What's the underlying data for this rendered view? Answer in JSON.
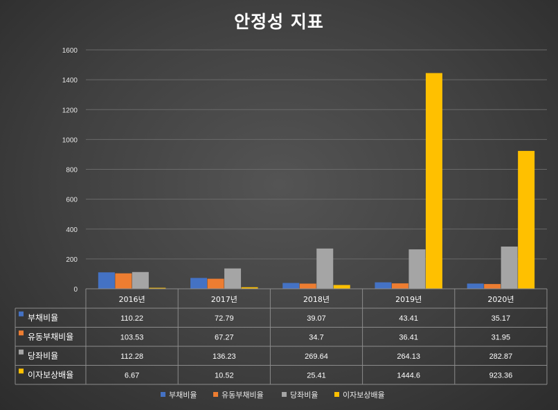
{
  "chart_data": {
    "type": "bar",
    "title": "안정성 지표",
    "categories": [
      "2016년",
      "2017년",
      "2018년",
      "2019년",
      "2020년"
    ],
    "series": [
      {
        "name": "부채비율",
        "color": "#4472C4",
        "values": [
          110.22,
          72.79,
          39.07,
          43.41,
          35.17
        ],
        "display": [
          "110.22",
          "72.79",
          "39.07",
          "43.41",
          "35.17"
        ]
      },
      {
        "name": "유동부채비율",
        "color": "#ED7D31",
        "values": [
          103.53,
          67.27,
          34.7,
          36.41,
          31.95
        ],
        "display": [
          "103.53",
          "67.27",
          "34.7",
          "36.41",
          "31.95"
        ]
      },
      {
        "name": "당좌비율",
        "color": "#A5A5A5",
        "values": [
          112.28,
          136.23,
          269.64,
          264.13,
          282.87
        ],
        "display": [
          "112.28",
          "136.23",
          "269.64",
          "264.13",
          "282.87"
        ]
      },
      {
        "name": "이자보상배율",
        "color": "#FFC000",
        "values": [
          6.67,
          10.52,
          25.41,
          1444.6,
          923.36
        ],
        "display": [
          "6.67",
          "10.52",
          "25.41",
          "1444.6",
          "923.36"
        ]
      }
    ],
    "ylim": [
      0,
      1600
    ],
    "yticks": [
      0,
      200,
      400,
      600,
      800,
      1000,
      1200,
      1400,
      1600
    ],
    "grid": true,
    "legend": "bottom",
    "data_table": true
  }
}
